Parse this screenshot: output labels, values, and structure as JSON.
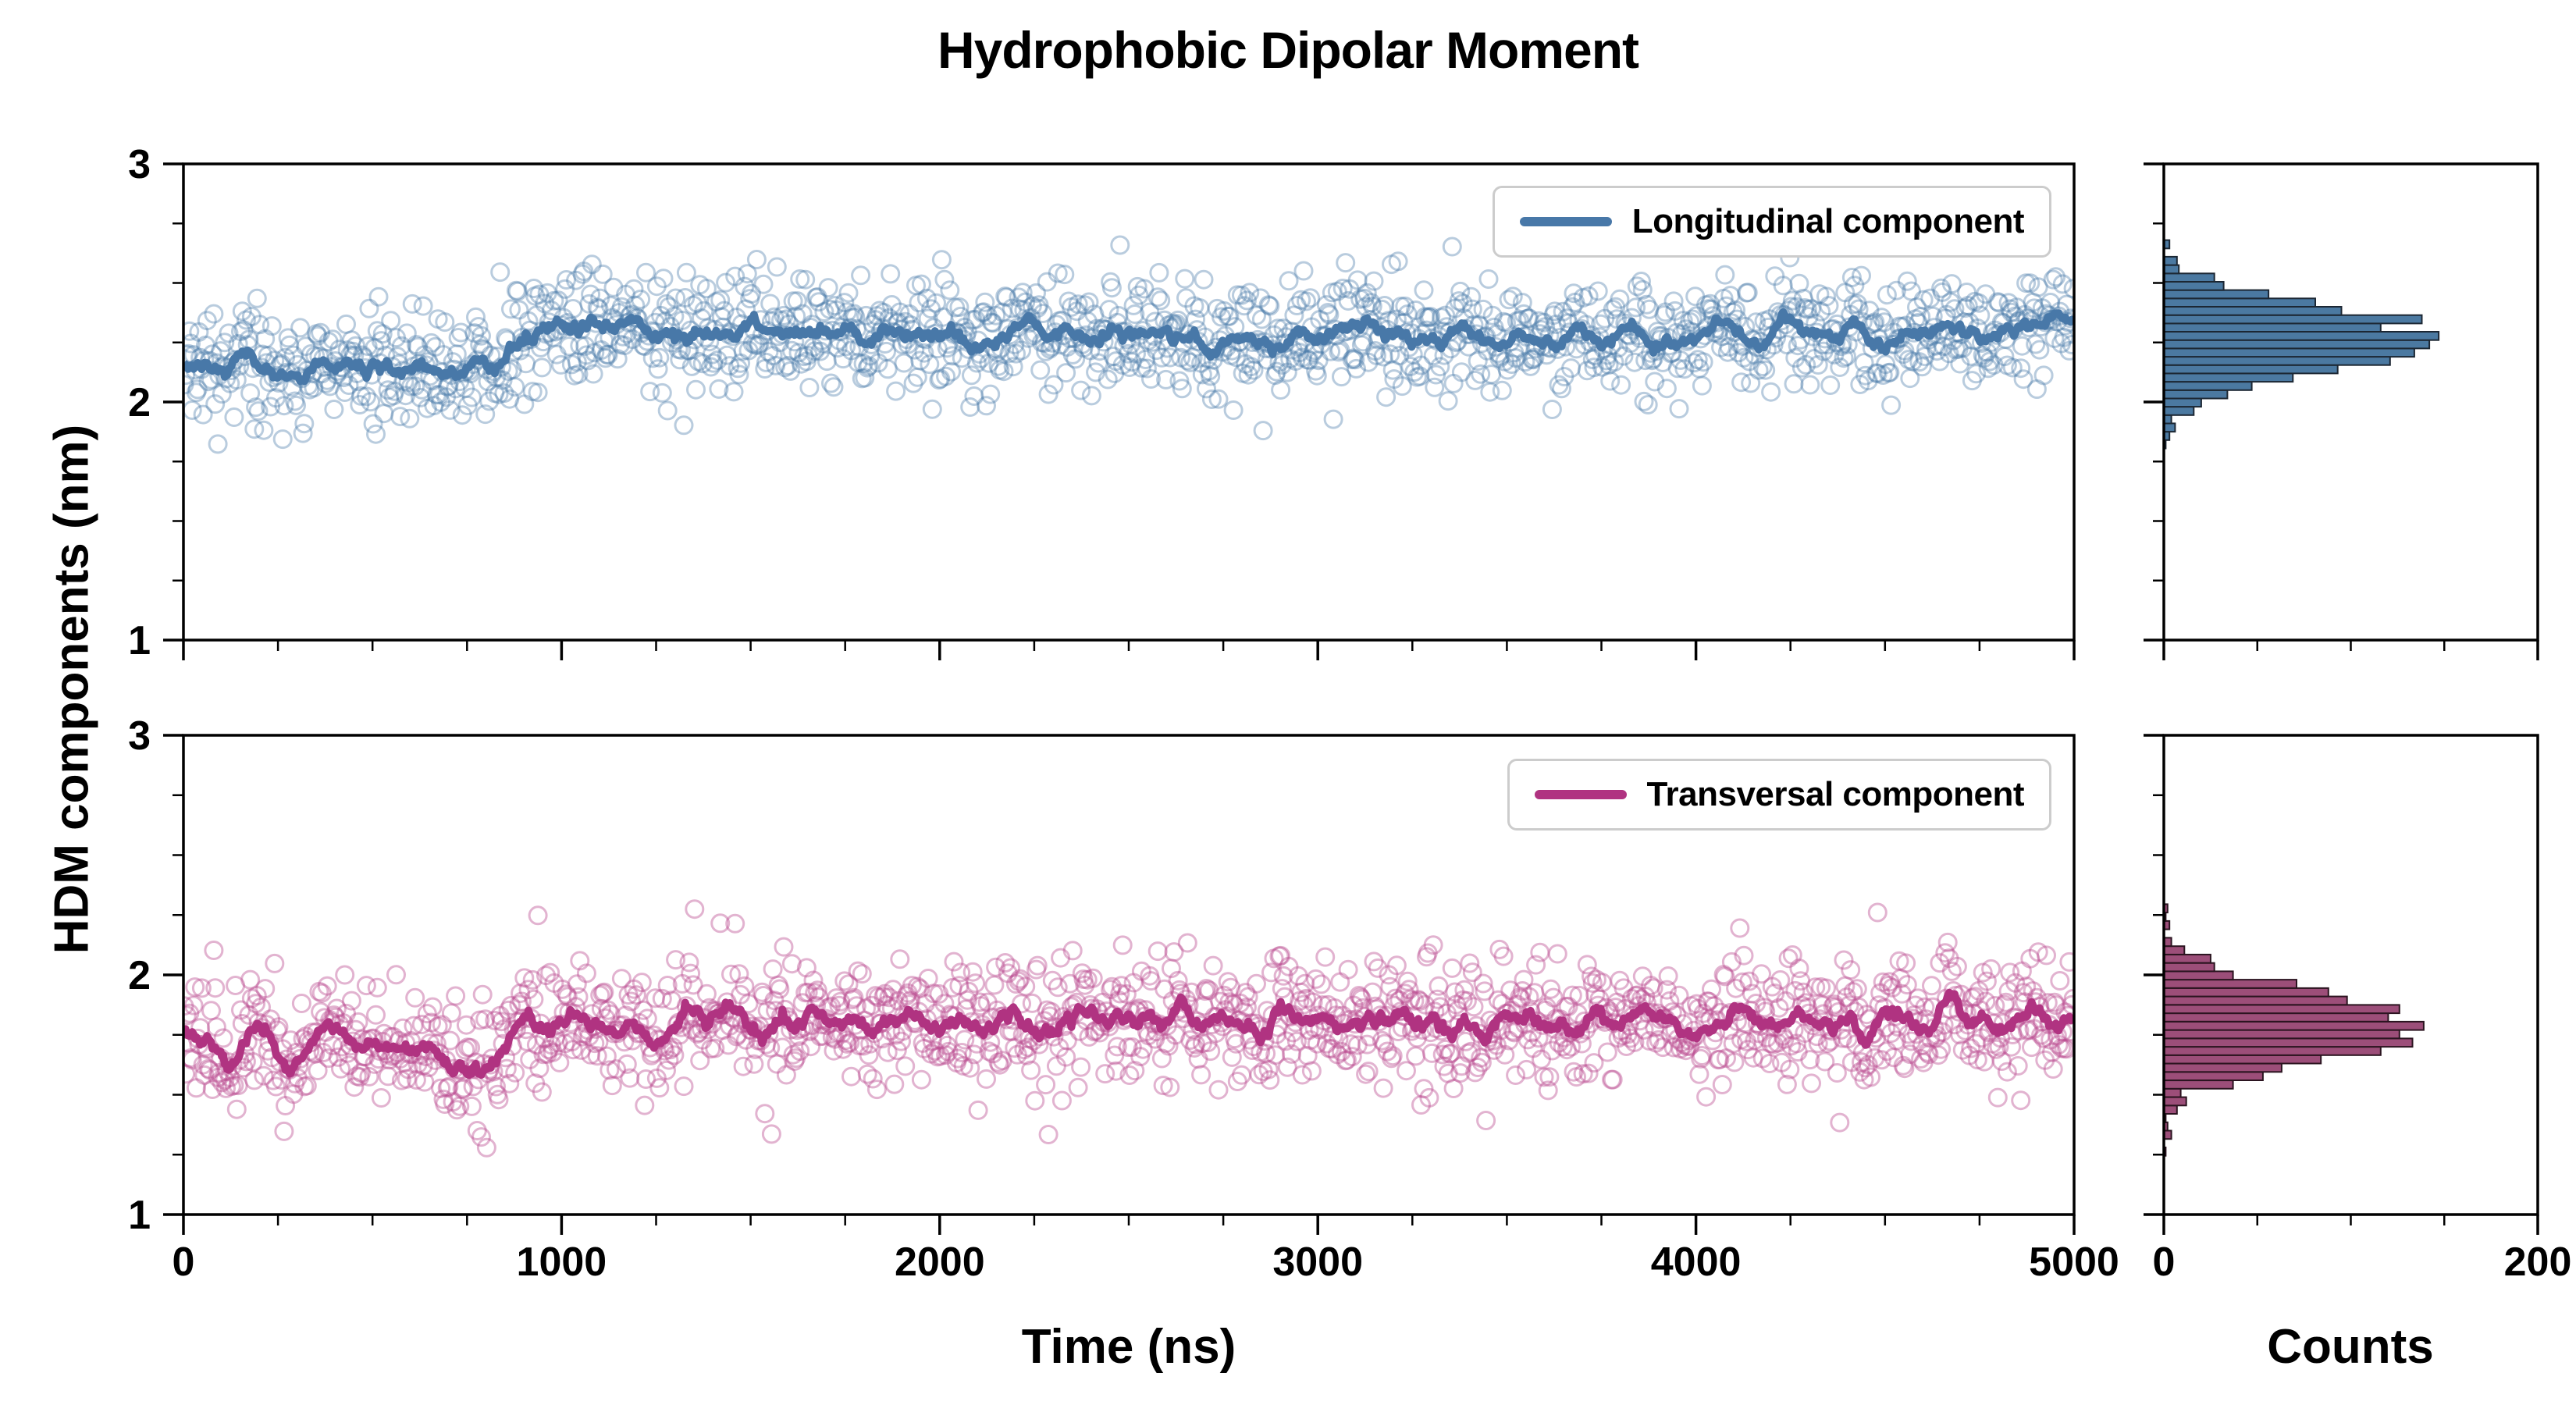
{
  "title": "Hydrophobic Dipolar Moment",
  "ylabel": "HDM components (nm)",
  "xlabel": "Time (ns)",
  "hist_xlabel": "Counts",
  "chart_data": [
    {
      "panel": "top",
      "type": "scatter",
      "legend": "Longitudinal component",
      "x_range": [
        0,
        5000
      ],
      "y_range": [
        1,
        3
      ],
      "x_ticks": [
        0,
        1000,
        2000,
        3000,
        4000,
        5000
      ],
      "x_minor_step": 250,
      "y_ticks": [
        3,
        2,
        1
      ],
      "y_minor_step": 0.25,
      "n_points": 1400,
      "seed": 20,
      "noise_std": 0.12,
      "smoothing_window": 15,
      "mean_profile": [
        [
          0,
          2.14
        ],
        [
          150,
          2.17
        ],
        [
          300,
          2.13
        ],
        [
          450,
          2.15
        ],
        [
          600,
          2.13
        ],
        [
          750,
          2.16
        ],
        [
          850,
          2.18
        ],
        [
          950,
          2.27
        ],
        [
          1050,
          2.32
        ],
        [
          1200,
          2.3
        ],
        [
          1350,
          2.28
        ],
        [
          1500,
          2.33
        ],
        [
          1650,
          2.3
        ],
        [
          1800,
          2.28
        ],
        [
          1950,
          2.3
        ],
        [
          2100,
          2.27
        ],
        [
          2250,
          2.29
        ],
        [
          2400,
          2.27
        ],
        [
          2550,
          2.28
        ],
        [
          2700,
          2.26
        ],
        [
          2850,
          2.29
        ],
        [
          3000,
          2.27
        ],
        [
          3150,
          2.29
        ],
        [
          3300,
          2.27
        ],
        [
          3450,
          2.28
        ],
        [
          3600,
          2.26
        ],
        [
          3750,
          2.28
        ],
        [
          3900,
          2.26
        ],
        [
          4050,
          2.28
        ],
        [
          4200,
          2.27
        ],
        [
          4350,
          2.29
        ],
        [
          4500,
          2.27
        ],
        [
          4650,
          2.28
        ],
        [
          4800,
          2.28
        ],
        [
          5000,
          2.31
        ]
      ],
      "scatter_color": "#4878a8",
      "scatter_alpha": 0.38,
      "line_color": "#4878a8",
      "hist": {
        "x_range": [
          0,
          200
        ],
        "x_ticks": [
          0,
          200
        ],
        "x_minor_step": 50,
        "bin_width": 0.035,
        "fill": "#4b79a1",
        "edge": "#1c2733",
        "peak_counts": 170
      }
    },
    {
      "panel": "bottom",
      "type": "scatter",
      "legend": "Transversal component",
      "x_range": [
        0,
        5000
      ],
      "y_range": [
        1,
        3
      ],
      "x_ticks": [
        0,
        1000,
        2000,
        3000,
        4000,
        5000
      ],
      "x_minor_step": 250,
      "y_ticks": [
        3,
        2,
        1
      ],
      "y_minor_step": 0.25,
      "n_points": 1400,
      "seed": 77,
      "noise_std": 0.135,
      "smoothing_window": 15,
      "mean_profile": [
        [
          0,
          1.7
        ],
        [
          150,
          1.73
        ],
        [
          300,
          1.69
        ],
        [
          450,
          1.72
        ],
        [
          600,
          1.66
        ],
        [
          750,
          1.63
        ],
        [
          850,
          1.7
        ],
        [
          950,
          1.78
        ],
        [
          1100,
          1.8
        ],
        [
          1250,
          1.77
        ],
        [
          1400,
          1.82
        ],
        [
          1550,
          1.79
        ],
        [
          1700,
          1.82
        ],
        [
          1850,
          1.8
        ],
        [
          2000,
          1.82
        ],
        [
          2150,
          1.79
        ],
        [
          2300,
          1.81
        ],
        [
          2450,
          1.78
        ],
        [
          2600,
          1.82
        ],
        [
          2750,
          1.8
        ],
        [
          2900,
          1.82
        ],
        [
          3050,
          1.8
        ],
        [
          3200,
          1.83
        ],
        [
          3350,
          1.8
        ],
        [
          3500,
          1.82
        ],
        [
          3650,
          1.8
        ],
        [
          3800,
          1.84
        ],
        [
          3950,
          1.81
        ],
        [
          4100,
          1.83
        ],
        [
          4250,
          1.8
        ],
        [
          4400,
          1.82
        ],
        [
          4550,
          1.8
        ],
        [
          4700,
          1.83
        ],
        [
          4850,
          1.81
        ],
        [
          5000,
          1.82
        ]
      ],
      "scatter_color": "#bb4a8f",
      "scatter_alpha": 0.42,
      "line_color": "#b03381",
      "hist": {
        "x_range": [
          0,
          200
        ],
        "x_ticks": [
          0,
          200
        ],
        "x_minor_step": 50,
        "bin_width": 0.035,
        "fill": "#9c4e79",
        "edge": "#2b1420",
        "peak_counts": 160
      }
    }
  ]
}
